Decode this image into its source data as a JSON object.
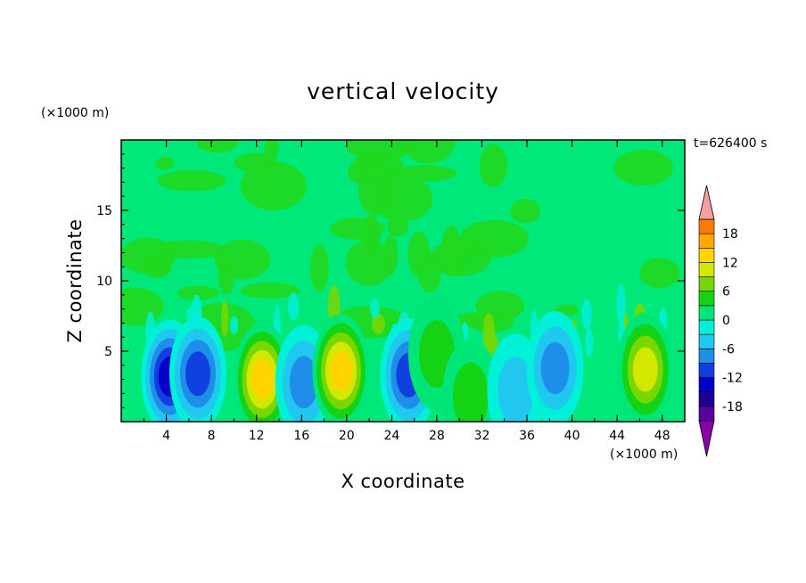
{
  "chart_data": {
    "type": "heatmap",
    "title": "vertical velocity",
    "xlabel": "X coordinate",
    "ylabel": "Z coordinate",
    "x_unit": "(×1000 m)",
    "y_unit": "(×1000 m)",
    "time_label": "t=626400 s",
    "xlim": [
      0,
      50
    ],
    "ylim": [
      0,
      20
    ],
    "x_ticks": [
      4,
      8,
      12,
      16,
      20,
      24,
      28,
      32,
      36,
      40,
      44,
      48
    ],
    "y_ticks": [
      5,
      10,
      15
    ],
    "colorbar": {
      "min": -21,
      "max": 21,
      "step": 3,
      "tick_labels": [
        18,
        12,
        6,
        0,
        -6,
        -12,
        -18
      ],
      "extend": "both"
    },
    "features": [
      {
        "x": 4.3,
        "z": 3.2,
        "value": -14
      },
      {
        "x": 6.8,
        "z": 3.4,
        "value": -11
      },
      {
        "x": 12.5,
        "z": 3.0,
        "value": 14
      },
      {
        "x": 16.2,
        "z": 2.8,
        "value": -8
      },
      {
        "x": 19.5,
        "z": 3.6,
        "value": 14
      },
      {
        "x": 25.5,
        "z": 3.3,
        "value": -9
      },
      {
        "x": 28.0,
        "z": 4.8,
        "value": 4
      },
      {
        "x": 31.0,
        "z": 1.8,
        "value": 3
      },
      {
        "x": 35.0,
        "z": 2.2,
        "value": -3
      },
      {
        "x": 38.5,
        "z": 3.8,
        "value": -6
      },
      {
        "x": 46.5,
        "z": 3.7,
        "value": 9
      }
    ]
  }
}
